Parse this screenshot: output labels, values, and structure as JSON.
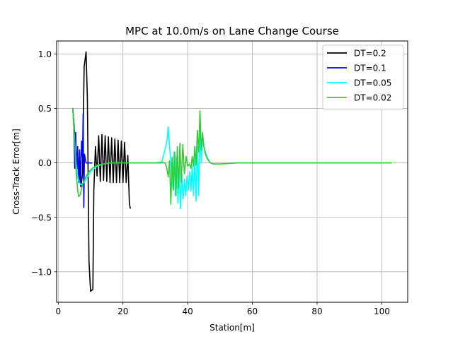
{
  "chart_data": {
    "type": "line",
    "title": "MPC at 10.0m/s on Lane Change Course",
    "xlabel": "Station[m]",
    "ylabel": "Cross-Track Error[m]",
    "xlim": [
      -0.5,
      108
    ],
    "ylim": [
      -1.28,
      1.12
    ],
    "xticks": [
      0,
      20,
      40,
      60,
      80,
      100
    ],
    "xtick_labels": [
      "0",
      "20",
      "40",
      "60",
      "80",
      "100"
    ],
    "yticks": [
      -1.0,
      -0.5,
      0.0,
      0.5,
      1.0
    ],
    "ytick_labels": [
      "−1.0",
      "−0.5",
      "0.0",
      "0.5",
      "1.0"
    ],
    "grid": true,
    "legend_position": "top-right",
    "series": [
      {
        "name": "DT=0.2",
        "color": "#000000",
        "points": [
          [
            4.5,
            0.5
          ],
          [
            5.0,
            0.3
          ],
          [
            5.5,
            0.1
          ],
          [
            6.0,
            0.02
          ],
          [
            6.5,
            -0.1
          ],
          [
            7.0,
            -0.22
          ],
          [
            7.5,
            -0.1
          ],
          [
            8.0,
            0.88
          ],
          [
            8.6,
            1.02
          ],
          [
            9.0,
            0.6
          ],
          [
            9.5,
            -0.9
          ],
          [
            10.0,
            -1.18
          ],
          [
            10.7,
            -1.16
          ],
          [
            11.0,
            -0.25
          ],
          [
            11.5,
            0.15
          ],
          [
            12.0,
            -0.12
          ],
          [
            12.5,
            0.25
          ],
          [
            13.0,
            -0.17
          ],
          [
            13.5,
            0.26
          ],
          [
            14.0,
            -0.16
          ],
          [
            14.5,
            0.25
          ],
          [
            15.0,
            -0.17
          ],
          [
            15.5,
            0.24
          ],
          [
            16.0,
            -0.18
          ],
          [
            16.5,
            0.23
          ],
          [
            17.0,
            -0.18
          ],
          [
            17.5,
            0.22
          ],
          [
            18.0,
            -0.18
          ],
          [
            18.5,
            0.21
          ],
          [
            19.0,
            -0.18
          ],
          [
            19.5,
            0.2
          ],
          [
            20.0,
            -0.18
          ],
          [
            20.5,
            0.19
          ],
          [
            21.0,
            -0.18
          ],
          [
            21.5,
            0.07
          ],
          [
            22.0,
            -0.38
          ],
          [
            22.3,
            -0.42
          ]
        ]
      },
      {
        "name": "DT=0.1",
        "color": "#0000ff",
        "points": [
          [
            4.5,
            0.5
          ],
          [
            4.8,
            0.35
          ],
          [
            5.1,
            -0.05
          ],
          [
            5.4,
            0.28
          ],
          [
            5.7,
            -0.15
          ],
          [
            6.0,
            0.15
          ],
          [
            6.3,
            -0.18
          ],
          [
            6.6,
            0.12
          ],
          [
            6.9,
            -0.2
          ],
          [
            7.2,
            0.2
          ],
          [
            7.5,
            0.05
          ],
          [
            7.7,
            0.45
          ],
          [
            7.9,
            -0.41
          ],
          [
            8.1,
            0.08
          ],
          [
            8.6,
            0.0
          ],
          [
            9.5,
            0.0
          ],
          [
            10.5,
            0.0
          ]
        ]
      },
      {
        "name": "DT=0.05",
        "color": "#00ffff",
        "points": [
          [
            4.5,
            0.5
          ],
          [
            5.0,
            0.25
          ],
          [
            5.5,
            0.0
          ],
          [
            6.0,
            -0.12
          ],
          [
            6.5,
            -0.18
          ],
          [
            7.0,
            -0.2
          ],
          [
            8.0,
            -0.18
          ],
          [
            9.0,
            -0.13
          ],
          [
            10.0,
            -0.08
          ],
          [
            12.0,
            -0.03
          ],
          [
            14.0,
            -0.01
          ],
          [
            16.0,
            0.0
          ],
          [
            20.0,
            0.0
          ],
          [
            26.0,
            0.0
          ],
          [
            30.0,
            0.0
          ],
          [
            32.0,
            0.01
          ],
          [
            33.0,
            0.12
          ],
          [
            33.6,
            0.2
          ],
          [
            34.0,
            0.33
          ],
          [
            34.4,
            0.15
          ],
          [
            34.7,
            0.05
          ],
          [
            35.0,
            -0.08
          ],
          [
            35.4,
            -0.23
          ],
          [
            35.8,
            0.1
          ],
          [
            36.2,
            -0.3
          ],
          [
            36.6,
            0.06
          ],
          [
            37.0,
            -0.37
          ],
          [
            37.4,
            -0.05
          ],
          [
            37.8,
            -0.42
          ],
          [
            38.2,
            -0.1
          ],
          [
            38.6,
            -0.33
          ],
          [
            39.0,
            -0.15
          ],
          [
            39.4,
            -0.3
          ],
          [
            39.8,
            -0.12
          ],
          [
            40.2,
            -0.25
          ],
          [
            40.6,
            -0.08
          ],
          [
            41.0,
            -0.26
          ],
          [
            41.4,
            -0.03
          ],
          [
            41.8,
            -0.3
          ],
          [
            42.2,
            0.05
          ],
          [
            42.6,
            -0.35
          ],
          [
            43.0,
            0.15
          ],
          [
            43.4,
            -0.3
          ],
          [
            43.8,
            0.3
          ],
          [
            44.2,
            0.0
          ],
          [
            44.6,
            0.22
          ],
          [
            45.0,
            0.15
          ],
          [
            46.0,
            0.05
          ],
          [
            47.0,
            0.0
          ],
          [
            48.0,
            -0.01
          ],
          [
            50.0,
            -0.01
          ],
          [
            55.0,
            0.0
          ],
          [
            60.0,
            0.0
          ],
          [
            80.0,
            0.0
          ],
          [
            103.0,
            0.0
          ]
        ]
      },
      {
        "name": "DT=0.02",
        "color": "#32cd32",
        "points": [
          [
            4.5,
            0.5
          ],
          [
            5.0,
            0.22
          ],
          [
            5.5,
            -0.07
          ],
          [
            6.0,
            -0.25
          ],
          [
            6.3,
            -0.31
          ],
          [
            6.8,
            -0.29
          ],
          [
            7.5,
            -0.2
          ],
          [
            8.5,
            -0.13
          ],
          [
            9.5,
            -0.08
          ],
          [
            10.5,
            -0.05
          ],
          [
            12.0,
            -0.02
          ],
          [
            14.0,
            -0.01
          ],
          [
            16.0,
            0.0
          ],
          [
            20.0,
            0.0
          ],
          [
            25.0,
            0.0
          ],
          [
            30.0,
            0.0
          ],
          [
            33.0,
            0.0
          ],
          [
            33.5,
            -0.04
          ],
          [
            34.0,
            -0.13
          ],
          [
            34.4,
            0.02
          ],
          [
            34.8,
            -0.38
          ],
          [
            35.2,
            0.05
          ],
          [
            35.6,
            -0.25
          ],
          [
            36.0,
            0.1
          ],
          [
            36.4,
            -0.3
          ],
          [
            36.8,
            0.15
          ],
          [
            37.2,
            -0.23
          ],
          [
            37.6,
            0.18
          ],
          [
            38.0,
            -0.18
          ],
          [
            38.5,
            0.17
          ],
          [
            39.0,
            -0.1
          ],
          [
            39.5,
            0.06
          ],
          [
            40.0,
            -0.03
          ],
          [
            40.5,
            -0.01
          ],
          [
            41.0,
            -0.05
          ],
          [
            41.4,
            0.06
          ],
          [
            41.8,
            -0.03
          ],
          [
            42.2,
            0.15
          ],
          [
            42.6,
            -0.02
          ],
          [
            43.0,
            0.3
          ],
          [
            43.4,
            0.1
          ],
          [
            43.8,
            0.48
          ],
          [
            44.2,
            0.12
          ],
          [
            44.6,
            0.28
          ],
          [
            45.0,
            0.15
          ],
          [
            45.5,
            0.08
          ],
          [
            46.0,
            0.04
          ],
          [
            47.0,
            0.0
          ],
          [
            48.0,
            -0.01
          ],
          [
            50.0,
            -0.01
          ],
          [
            55.0,
            0.0
          ],
          [
            60.0,
            0.0
          ],
          [
            80.0,
            0.0
          ],
          [
            103.0,
            0.0
          ]
        ]
      }
    ]
  }
}
